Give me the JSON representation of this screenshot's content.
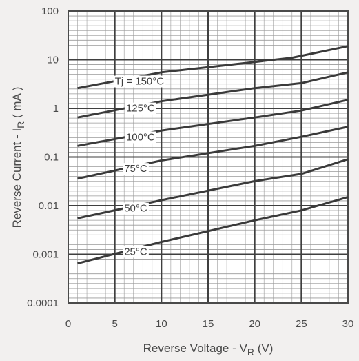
{
  "chart_data": {
    "type": "line",
    "title": "",
    "xlabel": {
      "main": "Reverse Voltage - V",
      "sub": "R",
      "unit": " (V)"
    },
    "ylabel": {
      "main": "Reverse Current - I",
      "sub": "R",
      "unit": " ( mA )"
    },
    "xlim": [
      0,
      30
    ],
    "ylim": [
      0.0001,
      100
    ],
    "yscale": "log",
    "x_ticks": [
      0,
      5,
      10,
      15,
      20,
      25,
      30
    ],
    "y_ticks": [
      {
        "value": 0.0001,
        "label": "0.0001"
      },
      {
        "value": 0.001,
        "label": "0.001"
      },
      {
        "value": 0.01,
        "label": "0.01"
      },
      {
        "value": 0.1,
        "label": "0.1"
      },
      {
        "value": 1,
        "label": "1"
      },
      {
        "value": 10,
        "label": "10"
      },
      {
        "value": 100,
        "label": "100"
      }
    ],
    "grid": true,
    "series": [
      {
        "name": "Tj = 150°C",
        "x": [
          1,
          10,
          20,
          24,
          30
        ],
        "y": [
          2.6,
          5.5,
          9,
          11,
          19
        ],
        "label_at": 5
      },
      {
        "name": "125°C",
        "x": [
          1,
          10,
          20,
          25,
          30
        ],
        "y": [
          0.65,
          1.4,
          2.6,
          3.3,
          5.5
        ],
        "label_at": 6.2
      },
      {
        "name": "100°C",
        "x": [
          1,
          10,
          20,
          25,
          30
        ],
        "y": [
          0.17,
          0.35,
          0.65,
          0.9,
          1.5
        ],
        "label_at": 6.2
      },
      {
        "name": "75°C",
        "x": [
          1,
          10,
          20,
          25,
          30
        ],
        "y": [
          0.036,
          0.085,
          0.17,
          0.26,
          0.42
        ],
        "label_at": 6
      },
      {
        "name": "50°C",
        "x": [
          1,
          10,
          20,
          25,
          30
        ],
        "y": [
          0.0055,
          0.013,
          0.032,
          0.045,
          0.09
        ],
        "label_at": 6
      },
      {
        "name": "25°C",
        "x": [
          1,
          10,
          20,
          25,
          30
        ],
        "y": [
          0.00065,
          0.0018,
          0.005,
          0.008,
          0.015
        ],
        "label_at": 6
      }
    ]
  }
}
